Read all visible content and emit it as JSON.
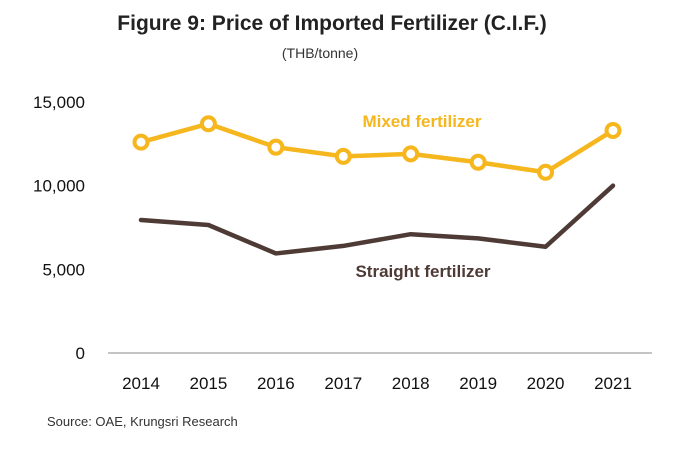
{
  "chart_data": {
    "type": "line",
    "title": "Figure 9: Price of Imported Fertilizer (C.I.F.)",
    "unit": "(THB/tonne)",
    "source": "Source: OAE, Krungsri Research",
    "categories": [
      "2014",
      "2015",
      "2016",
      "2017",
      "2018",
      "2019",
      "2020",
      "2021"
    ],
    "ylim": [
      0,
      15000
    ],
    "yticks": [
      0,
      5000,
      10000,
      15000
    ],
    "ytick_labels": [
      "0",
      "5,000",
      "10,000",
      "15,000"
    ],
    "grid": false,
    "series": [
      {
        "name": "Mixed fertilizer",
        "color": "#F5B61E",
        "marker": "circle",
        "values": [
          12600,
          13700,
          12300,
          11750,
          11900,
          11400,
          10800,
          13300
        ]
      },
      {
        "name": "Straight fertilizer",
        "color": "#4E3B36",
        "marker": "none",
        "values": [
          7950,
          7650,
          5950,
          6400,
          7100,
          6850,
          6350,
          10000
        ]
      }
    ]
  }
}
